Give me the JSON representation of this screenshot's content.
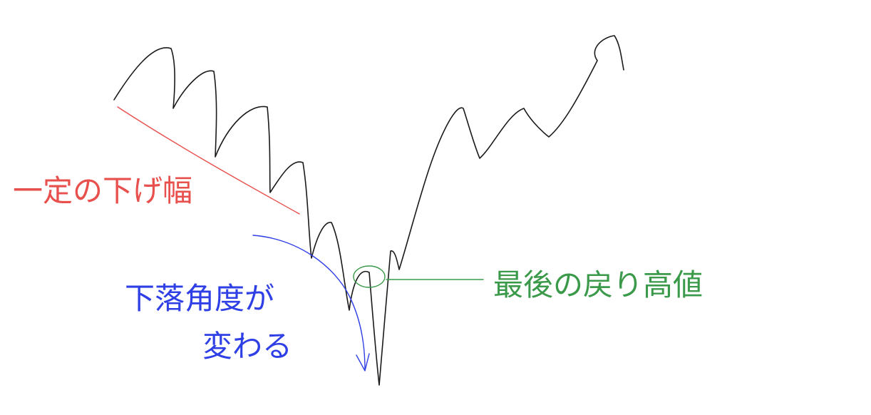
{
  "annotations": {
    "constant_drop": {
      "text": "一定の下げ幅",
      "color": "#e8504d"
    },
    "fall_angle_changes": {
      "line1": "下落角度が",
      "line2": "変わる",
      "color": "#2f3fe6"
    },
    "last_rebound_high": {
      "text": "最後の戻り高値",
      "color": "#3a9a4a"
    }
  },
  "colors": {
    "price_line": "#1a1a1a",
    "background": "#ffffff"
  }
}
